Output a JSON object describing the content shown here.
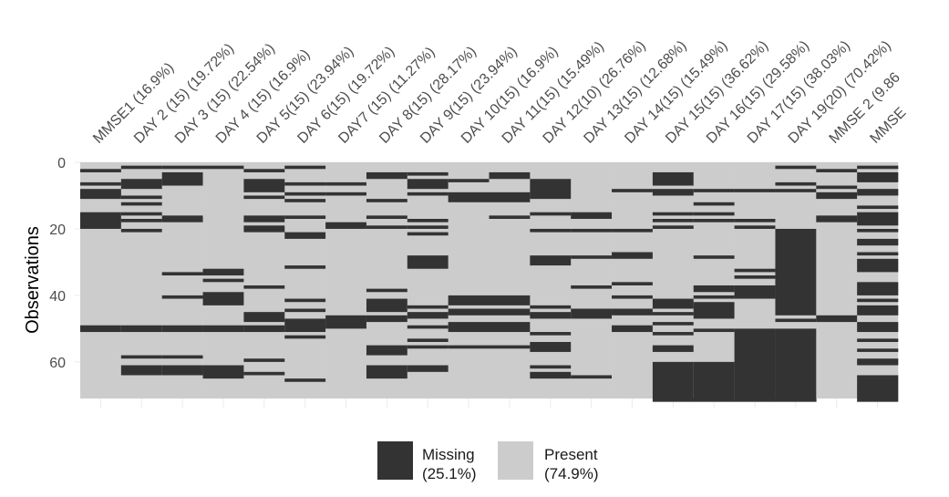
{
  "chart_data": {
    "type": "heatmap",
    "title": "",
    "xlabel": "",
    "ylabel": "Observations",
    "ylim": [
      0,
      71
    ],
    "y_ticks": [
      0,
      20,
      40,
      60
    ],
    "y_tick_labels": [
      "0",
      "20",
      "40",
      "60"
    ],
    "n_rows": 71,
    "columns": [
      "MMSE1 (16.9%)",
      "DAY 2 (15) (19.72%)",
      "DAY 3 (15) (22.54%)",
      "DAY 4 (15) (16.9%)",
      "DAY 5(15) (23.94%)",
      "DAY 6(15) (19.72%)",
      "DAY7 (15) (11.27%)",
      "DAY 8(15) (28.17%)",
      "DAY 9(15) (23.94%)",
      "DAY 10(15) (16.9%)",
      "DAY 11(15) (15.49%)",
      "DAY 12(10) (26.76%)",
      "DAY 13(15) (12.68%)",
      "DAY 14(15) (15.49%)",
      "DAY 15(15) (36.62%)",
      "DAY 16(15) (29.58%)",
      "DAY 17(15) (38.03%)",
      "DAY 19(20) (70.42%)",
      "MMSE 2 (9.86",
      "MMSE"
    ],
    "missing_ranges": [
      [
        [
          2,
          2
        ],
        [
          6,
          6
        ],
        [
          8,
          10
        ],
        [
          15,
          19
        ],
        [
          49,
          50
        ]
      ],
      [
        [
          1,
          1
        ],
        [
          5,
          7
        ],
        [
          10,
          10
        ],
        [
          12,
          12
        ],
        [
          15,
          15
        ],
        [
          17,
          17
        ],
        [
          20,
          20
        ],
        [
          49,
          50
        ],
        [
          58,
          58
        ],
        [
          61,
          63
        ]
      ],
      [
        [
          1,
          1
        ],
        [
          3,
          6
        ],
        [
          16,
          17
        ],
        [
          33,
          33
        ],
        [
          40,
          40
        ],
        [
          49,
          50
        ],
        [
          58,
          58
        ],
        [
          61,
          63
        ]
      ],
      [
        [
          1,
          1
        ],
        [
          32,
          33
        ],
        [
          35,
          35
        ],
        [
          39,
          42
        ],
        [
          49,
          50
        ],
        [
          61,
          64
        ]
      ],
      [
        [
          2,
          2
        ],
        [
          5,
          8
        ],
        [
          10,
          10
        ],
        [
          16,
          17
        ],
        [
          19,
          20
        ],
        [
          37,
          37
        ],
        [
          45,
          47
        ],
        [
          49,
          50
        ],
        [
          59,
          59
        ],
        [
          63,
          63
        ]
      ],
      [
        [
          1,
          1
        ],
        [
          6,
          6
        ],
        [
          9,
          9
        ],
        [
          11,
          11
        ],
        [
          16,
          16
        ],
        [
          21,
          22
        ],
        [
          31,
          31
        ],
        [
          41,
          41
        ],
        [
          44,
          44
        ],
        [
          47,
          50
        ],
        [
          52,
          52
        ],
        [
          65,
          65
        ]
      ],
      [
        [
          6,
          6
        ],
        [
          9,
          9
        ],
        [
          18,
          19
        ],
        [
          46,
          49
        ]
      ],
      [
        [
          3,
          4
        ],
        [
          11,
          11
        ],
        [
          16,
          16
        ],
        [
          19,
          19
        ],
        [
          38,
          38
        ],
        [
          41,
          44
        ],
        [
          46,
          47
        ],
        [
          55,
          57
        ],
        [
          61,
          64
        ]
      ],
      [
        [
          3,
          3
        ],
        [
          5,
          7
        ],
        [
          9,
          9
        ],
        [
          17,
          17
        ],
        [
          19,
          19
        ],
        [
          21,
          21
        ],
        [
          28,
          31
        ],
        [
          43,
          43
        ],
        [
          45,
          46
        ],
        [
          49,
          49
        ],
        [
          53,
          53
        ],
        [
          55,
          55
        ],
        [
          61,
          62
        ]
      ],
      [
        [
          5,
          5
        ],
        [
          9,
          11
        ],
        [
          40,
          42
        ],
        [
          44,
          45
        ],
        [
          48,
          50
        ],
        [
          55,
          55
        ]
      ],
      [
        [
          3,
          4
        ],
        [
          9,
          11
        ],
        [
          16,
          16
        ],
        [
          40,
          42
        ],
        [
          44,
          45
        ],
        [
          48,
          50
        ],
        [
          55,
          55
        ]
      ],
      [
        [
          5,
          10
        ],
        [
          15,
          15
        ],
        [
          20,
          20
        ],
        [
          28,
          30
        ],
        [
          43,
          43
        ],
        [
          45,
          46
        ],
        [
          51,
          51
        ],
        [
          54,
          56
        ],
        [
          61,
          61
        ],
        [
          63,
          64
        ]
      ],
      [
        [
          15,
          16
        ],
        [
          20,
          20
        ],
        [
          28,
          28
        ],
        [
          37,
          37
        ],
        [
          44,
          46
        ],
        [
          64,
          64
        ]
      ],
      [
        [
          8,
          8
        ],
        [
          20,
          20
        ],
        [
          27,
          28
        ],
        [
          36,
          36
        ],
        [
          40,
          40
        ],
        [
          44,
          45
        ],
        [
          49,
          50
        ]
      ],
      [
        [
          3,
          6
        ],
        [
          8,
          9
        ],
        [
          15,
          15
        ],
        [
          17,
          17
        ],
        [
          19,
          19
        ],
        [
          41,
          43
        ],
        [
          45,
          45
        ],
        [
          48,
          48
        ],
        [
          51,
          51
        ],
        [
          55,
          56
        ],
        [
          60,
          71
        ]
      ],
      [
        [
          8,
          8
        ],
        [
          12,
          12
        ],
        [
          15,
          15
        ],
        [
          17,
          17
        ],
        [
          28,
          28
        ],
        [
          37,
          38
        ],
        [
          40,
          40
        ],
        [
          42,
          46
        ],
        [
          50,
          50
        ],
        [
          60,
          71
        ]
      ],
      [
        [
          8,
          8
        ],
        [
          17,
          17
        ],
        [
          19,
          19
        ],
        [
          32,
          32
        ],
        [
          34,
          34
        ],
        [
          37,
          40
        ],
        [
          50,
          71
        ]
      ],
      [
        [
          1,
          1
        ],
        [
          6,
          6
        ],
        [
          8,
          8
        ],
        [
          20,
          45
        ],
        [
          47,
          47
        ],
        [
          50,
          71
        ]
      ],
      [
        [
          2,
          2
        ],
        [
          7,
          7
        ],
        [
          9,
          10
        ],
        [
          16,
          17
        ],
        [
          46,
          47
        ]
      ],
      [
        [
          1,
          1
        ],
        [
          3,
          5
        ],
        [
          8,
          9
        ],
        [
          13,
          13
        ],
        [
          15,
          18
        ],
        [
          20,
          20
        ],
        [
          23,
          24
        ],
        [
          27,
          27
        ],
        [
          29,
          32
        ],
        [
          36,
          39
        ],
        [
          41,
          41
        ],
        [
          43,
          45
        ],
        [
          48,
          50
        ],
        [
          53,
          53
        ],
        [
          56,
          56
        ],
        [
          59,
          60
        ],
        [
          64,
          71
        ]
      ]
    ],
    "colors": {
      "missing": "#333333",
      "present": "#cccccc"
    },
    "legend": {
      "position": "bottom",
      "items": [
        {
          "label": "Missing",
          "pct": "(25.1%)",
          "color": "#333333"
        },
        {
          "label": "Present",
          "pct": "(74.9%)",
          "color": "#cccccc"
        }
      ]
    },
    "grid": true
  }
}
